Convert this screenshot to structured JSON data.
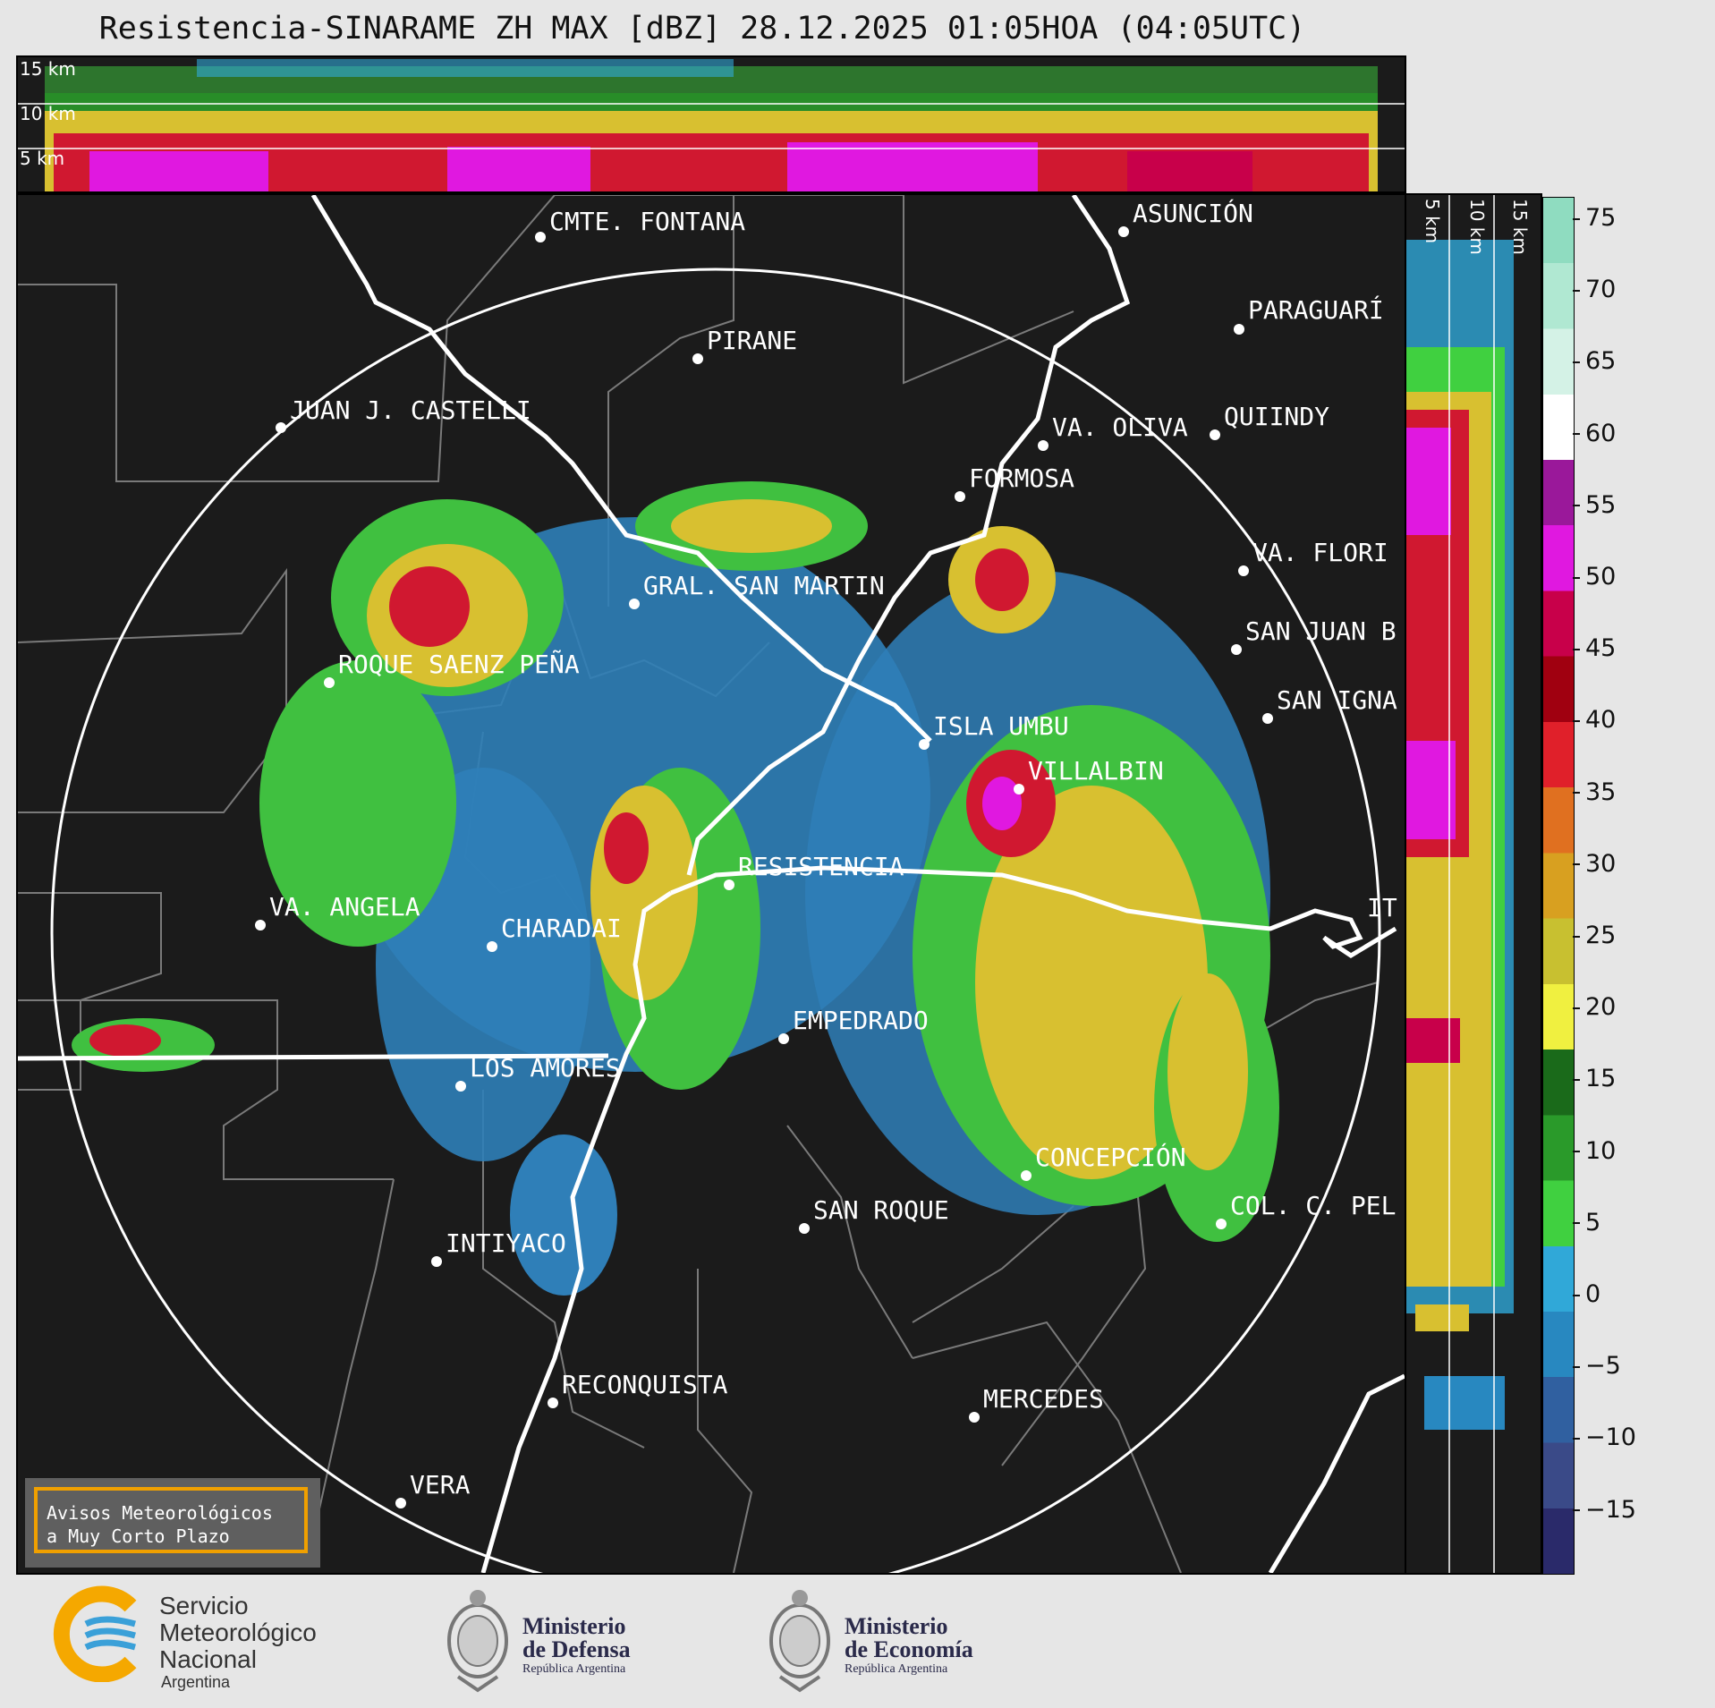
{
  "title": "Resistencia-SINARAME ZH MAX [dBZ] 28.12.2025 01:05HOA (04:05UTC)",
  "top_profile": {
    "height_labels": [
      "15 km",
      "10 km",
      "5 km"
    ]
  },
  "side_profile": {
    "height_labels": [
      "5 km",
      "10 km",
      "15 km"
    ]
  },
  "colorbar": {
    "units": "dBZ",
    "ticks": [
      "75",
      "70",
      "65",
      "60",
      "55",
      "50",
      "45",
      "40",
      "35",
      "30",
      "25",
      "20",
      "15",
      "10",
      "5",
      "0",
      "−5",
      "−10",
      "−15"
    ],
    "colors_top_to_bottom": [
      "#8fdcc0",
      "#b0e8d2",
      "#d4f2e6",
      "#ffffff",
      "#9a189a",
      "#e018e0",
      "#c8004a",
      "#a00010",
      "#e0202a",
      "#e07020",
      "#d8a020",
      "#c8c030",
      "#f0f040",
      "#1a6a1a",
      "#2a9a2a",
      "#40d040",
      "#30a8d8",
      "#2888c0",
      "#3060a0",
      "#3a4a88",
      "#2a2a6a"
    ]
  },
  "cities": [
    {
      "name": "CMTE. FONTANA"
    },
    {
      "name": "ASUNCIÓN"
    },
    {
      "name": "PARAGUARÍ"
    },
    {
      "name": "PIRANE"
    },
    {
      "name": "JUAN J. CASTELLI"
    },
    {
      "name": "QUIINDY"
    },
    {
      "name": "VA. OLIVA"
    },
    {
      "name": "FORMOSA"
    },
    {
      "name": "VA. FLORI"
    },
    {
      "name": "GRAL. SAN MARTIN"
    },
    {
      "name": "SAN JUAN B"
    },
    {
      "name": "ROQUE SAENZ PEÑA"
    },
    {
      "name": "SAN IGNA"
    },
    {
      "name": "ISLA UMBU"
    },
    {
      "name": "VILLALBIN"
    },
    {
      "name": "RESISTENCIA"
    },
    {
      "name": "VA. ANGELA"
    },
    {
      "name": "CHARADAI"
    },
    {
      "name": "IT"
    },
    {
      "name": "EMPEDRADO"
    },
    {
      "name": "LOS AMORES"
    },
    {
      "name": "CONCEPCIÓN"
    },
    {
      "name": "SAN ROQUE"
    },
    {
      "name": "COL. C. PEL"
    },
    {
      "name": "INTIYACO"
    },
    {
      "name": "RECONQUISTA"
    },
    {
      "name": "MERCEDES"
    },
    {
      "name": "VERA"
    }
  ],
  "notice": {
    "line1": "Avisos Meteorológicos",
    "line2": "a Muy Corto Plazo"
  },
  "footer": {
    "smn": {
      "line1": "Servicio",
      "line2": "Meteorológico",
      "line3": "Nacional",
      "line4": "Argentina"
    },
    "defensa": {
      "line1": "Ministerio",
      "line2": "de Defensa",
      "line3": "República Argentina"
    },
    "economia": {
      "line1": "Ministerio",
      "line2": "de Economía",
      "line3": "República Argentina"
    }
  }
}
